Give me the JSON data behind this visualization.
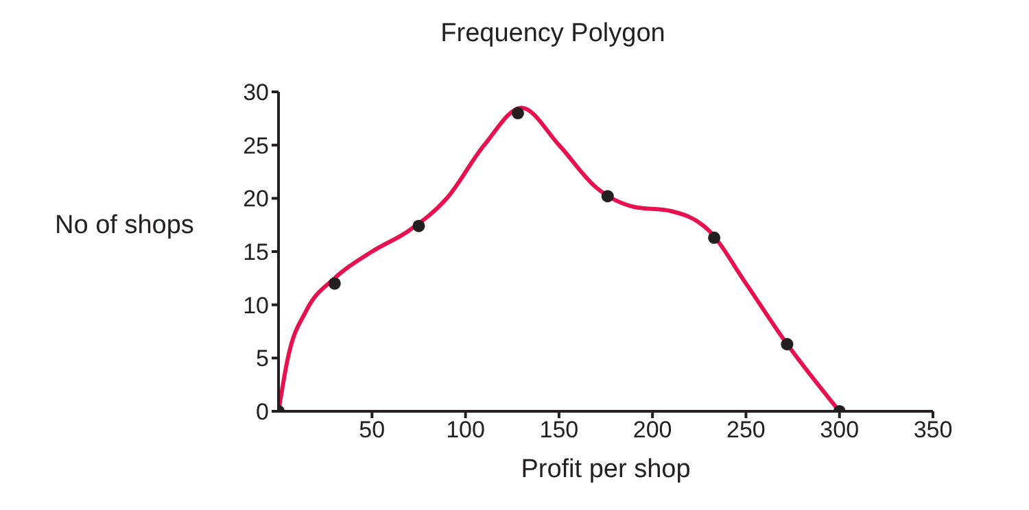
{
  "chart_data": {
    "type": "scatter",
    "title": "Frequency Polygon",
    "xlabel": "Profit per shop",
    "ylabel": "No of shops",
    "xlim": [
      0,
      350
    ],
    "xticks": [
      50,
      100,
      150,
      200,
      250,
      300,
      350
    ],
    "ylim": [
      0,
      30
    ],
    "yticks": [
      0,
      5,
      10,
      15,
      20,
      25,
      30
    ],
    "grid": false,
    "series": [
      {
        "type": "line",
        "color": "#e8114f",
        "marker": "none",
        "line_style": "solid",
        "x": [
          0,
          5,
          15,
          30,
          50,
          70,
          90,
          110,
          130,
          150,
          170,
          190,
          210,
          230,
          250,
          270,
          300
        ],
        "values": [
          0,
          5,
          9.5,
          12.5,
          15,
          17,
          20,
          25,
          28.5,
          25,
          21,
          19.2,
          18.8,
          17,
          12,
          6.8,
          0
        ]
      },
      {
        "color": "#231f20",
        "marker": "circle",
        "x": [
          0,
          30,
          75,
          128,
          176,
          233,
          272,
          300
        ],
        "values": [
          0,
          12,
          17.4,
          28,
          20.2,
          16.3,
          6.3,
          0
        ]
      }
    ]
  }
}
